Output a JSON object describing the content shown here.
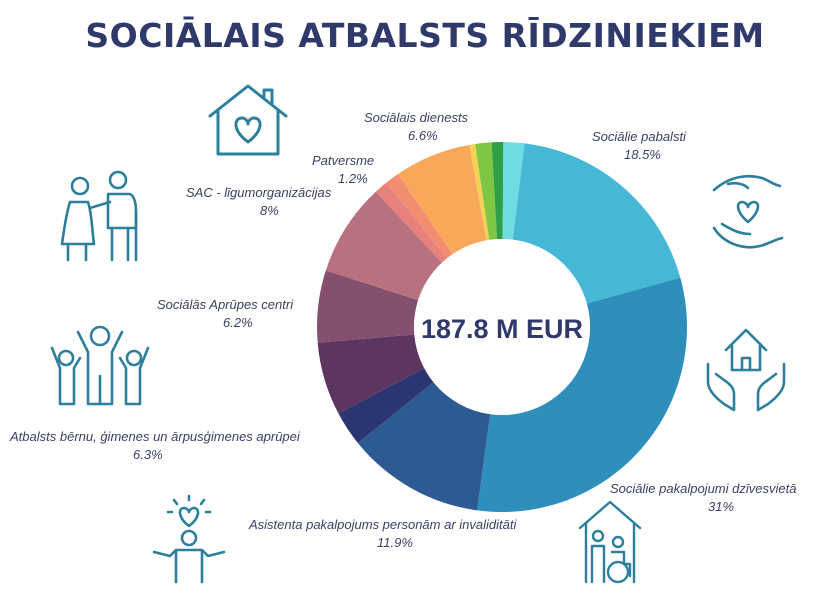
{
  "title": "SOCIĀLAIS ATBALSTS RĪDZINIEKIEM",
  "center_label": "187.8 M EUR",
  "colors": {
    "title": "#2f3a6b",
    "icon": "#2e7f9b",
    "label": "#3a3f63"
  },
  "icons": [
    "house-heart-icon",
    "elderly-couple-icon",
    "family-icon",
    "heart-child-icon",
    "hands-heart-icon",
    "hands-house-icon",
    "caregiver-wheelchair-icon"
  ],
  "chart_data": {
    "type": "pie",
    "donut": true,
    "total_label": "187.8 M EUR",
    "slices": [
      {
        "label": "Sociālie pabalsti",
        "value_label": "18.5%",
        "value": 18.5,
        "color": "#45b8d6"
      },
      {
        "label": "Sociālie pakalpojumi dzīvesvietā",
        "value_label": "31%",
        "value": 31,
        "color": "#2e8ebc"
      },
      {
        "label": "Asistenta pakalpojums personām ar invaliditāti",
        "value_label": "11.9%",
        "value": 11.9,
        "color": "#2e5a93"
      },
      {
        "label": "",
        "value_label": "",
        "value": 3.0,
        "color": "#2b3571"
      },
      {
        "label": "Atbalsts bērnu, ģimenes un ārpusģimenes aprūpei",
        "value_label": "6.3%",
        "value": 6.3,
        "color": "#5c3561"
      },
      {
        "label": "Sociālās Aprūpes centri",
        "value_label": "6.2%",
        "value": 6.2,
        "color": "#85506f"
      },
      {
        "label": "SAC - līgumorganizācijas",
        "value_label": "8%",
        "value": 8,
        "color": "#b8717e"
      },
      {
        "label": "",
        "value_label": "",
        "value": 1.2,
        "color": "#e8807b"
      },
      {
        "label": "Patversme",
        "value_label": "1.2%",
        "value": 1.2,
        "color": "#f28d72"
      },
      {
        "label": "Sociālais dienests",
        "value_label": "6.6%",
        "value": 6.6,
        "color": "#f9a85a"
      },
      {
        "label": "",
        "value_label": "",
        "value": 0.5,
        "color": "#f3d154"
      },
      {
        "label": "",
        "value_label": "",
        "value": 1.4,
        "color": "#7fc643"
      },
      {
        "label": "",
        "value_label": "",
        "value": 1.0,
        "color": "#2f9f48"
      },
      {
        "label": "",
        "value_label": "",
        "value": 1.8,
        "color": "#6fdce3"
      }
    ]
  }
}
